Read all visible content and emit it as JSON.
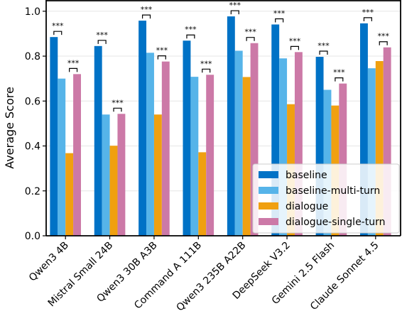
{
  "chart_data": {
    "type": "bar",
    "title": "",
    "xlabel": "",
    "ylabel": "Average Score",
    "ylim": [
      0,
      1.05
    ],
    "yticks": [
      "0.0",
      "0.2",
      "0.4",
      "0.6",
      "0.8",
      "1.0"
    ],
    "grid": true,
    "legend_position": "lower-right",
    "categories": [
      "Qwen3 4B",
      "Mistral Small 24B",
      "Qwen3 30B A3B",
      "Command A 111B",
      "Qwen3 235B A22B",
      "DeepSeek V3.2",
      "Gemini 2.5 Flash",
      "Claude Sonnet 4.5"
    ],
    "series": [
      {
        "name": "baseline",
        "color": "#0072c6",
        "values": [
          0.885,
          0.845,
          0.958,
          0.869,
          0.977,
          0.941,
          0.797,
          0.946
        ]
      },
      {
        "name": "baseline-multi-turn",
        "color": "#56b4e9",
        "values": [
          0.7,
          0.54,
          0.815,
          0.708,
          0.824,
          0.79,
          0.65,
          0.746
        ]
      },
      {
        "name": "dialogue",
        "color": "#f0a010",
        "values": [
          0.368,
          0.401,
          0.54,
          0.372,
          0.707,
          0.586,
          0.58,
          0.778
        ]
      },
      {
        "name": "dialogue-single-turn",
        "color": "#cc79a7",
        "values": [
          0.72,
          0.543,
          0.776,
          0.717,
          0.858,
          0.818,
          0.678,
          0.839
        ]
      }
    ],
    "annotations": {
      "significance_label": "***",
      "comparisons": [
        {
          "from_series": 0,
          "to_series": 1
        },
        {
          "from_series": 2,
          "to_series": 3
        }
      ]
    }
  }
}
